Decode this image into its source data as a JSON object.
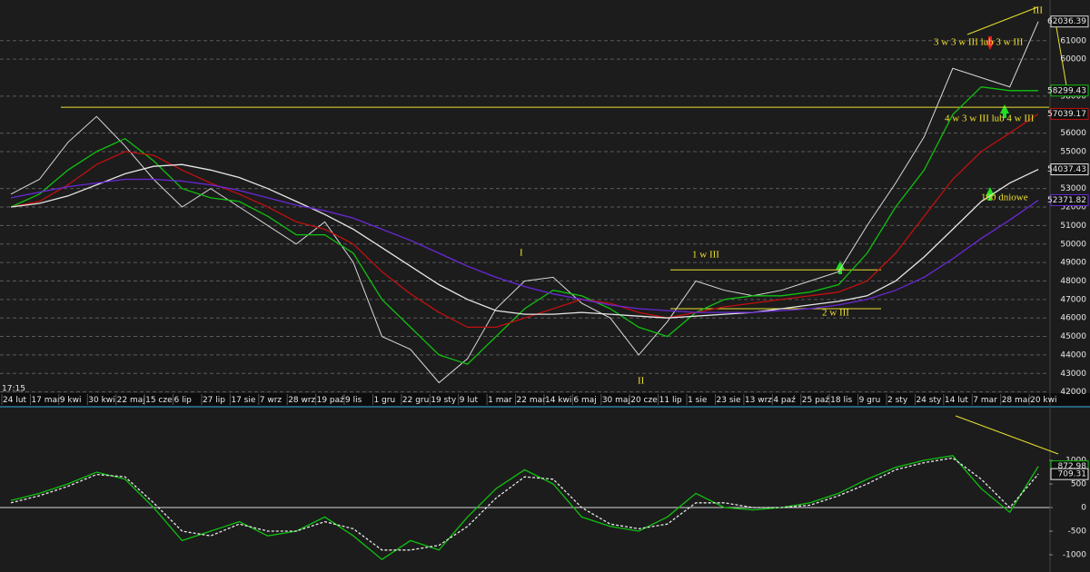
{
  "chart_data": [
    {
      "type": "line",
      "time": "17:15",
      "categories": [
        "24 lut",
        "17 mar",
        "9 kwi",
        "30 kwi",
        "22 maj",
        "15 cze",
        "6 lip",
        "27 lip",
        "17 sie",
        "7 wrz",
        "28 wrz",
        "19 paź",
        "9 lis",
        "1 gru",
        "22 gru",
        "19 sty",
        "9 lut",
        "1 mar",
        "22 mar",
        "14 kwi",
        "6 maj",
        "30 maj",
        "20 cze",
        "11 lip",
        "1 sie",
        "23 sie",
        "13 wrz",
        "4 paź",
        "25 paź",
        "18 lis",
        "9 gru",
        "2 sty",
        "24 sty",
        "14 lut",
        "7 mar",
        "28 mar",
        "20 kwi"
      ],
      "series": [
        {
          "color": "#d8d8d8",
          "values": [
            52700,
            53500,
            55500,
            56900,
            55300,
            53500,
            52000,
            53000,
            52000,
            51000,
            50000,
            51200,
            49000,
            45000,
            44300,
            42500,
            43800,
            46500,
            48000,
            48200,
            46800,
            46000,
            44000,
            45800,
            48000,
            47500,
            47200,
            47500,
            48000,
            48500,
            51000,
            53300,
            55800,
            59500,
            59000,
            58500,
            62036.39
          ]
        },
        {
          "color": "#10c010",
          "values": [
            52000,
            52700,
            54000,
            55000,
            55700,
            54500,
            53000,
            52500,
            52300,
            51500,
            50500,
            50500,
            49500,
            47000,
            45500,
            44000,
            43500,
            45000,
            46500,
            47500,
            47200,
            46500,
            45500,
            45000,
            46300,
            47000,
            47200,
            47200,
            47400,
            47800,
            49500,
            52000,
            54000,
            57000,
            58500,
            58300,
            58299.43
          ]
        },
        {
          "color": "#c01010",
          "values": [
            52000,
            52300,
            53200,
            54300,
            55000,
            54800,
            54000,
            53300,
            52700,
            52000,
            51200,
            50800,
            50000,
            48500,
            47300,
            46300,
            45500,
            45500,
            46000,
            46500,
            47000,
            46800,
            46300,
            46000,
            46300,
            46600,
            46800,
            47000,
            47200,
            47400,
            48000,
            49500,
            51500,
            53500,
            55000,
            56000,
            57039.17
          ]
        },
        {
          "color": "#e6e6e6",
          "values": [
            52000,
            52200,
            52600,
            53200,
            53800,
            54200,
            54300,
            54000,
            53600,
            53000,
            52300,
            51600,
            50800,
            49800,
            48800,
            47800,
            47000,
            46400,
            46200,
            46200,
            46300,
            46200,
            46100,
            46000,
            46100,
            46200,
            46300,
            46500,
            46700,
            46900,
            47200,
            48000,
            49300,
            50800,
            52300,
            53300,
            54037.43
          ]
        },
        {
          "color": "#6a28d8",
          "values": [
            52500,
            52800,
            53100,
            53300,
            53500,
            53500,
            53400,
            53200,
            52900,
            52500,
            52100,
            51800,
            51400,
            50800,
            50200,
            49500,
            48800,
            48200,
            47700,
            47300,
            47000,
            46700,
            46500,
            46400,
            46300,
            46300,
            46300,
            46400,
            46500,
            46700,
            47000,
            47500,
            48200,
            49200,
            50300,
            51300,
            52371.82
          ]
        }
      ],
      "levels": [
        57400,
        48600,
        46500
      ],
      "annotations": [
        "III",
        "3 w 3 w III lub 3 w III",
        "4 w 3 w III lub 4 w III",
        "100 dniowe",
        "I",
        "1 w III",
        "2 w III",
        "II"
      ],
      "ylim": [
        41000,
        63200
      ],
      "yticks": [
        42000,
        43000,
        44000,
        45000,
        46000,
        47000,
        48000,
        49000,
        50000,
        51000,
        52000,
        53000,
        55000,
        56000,
        58000,
        60000,
        61000
      ],
      "grid": true
    },
    {
      "type": "line",
      "series": [
        {
          "color": "#10c010",
          "dashed": false,
          "values": [
            150,
            300,
            500,
            750,
            600,
            0,
            -700,
            -500,
            -300,
            -600,
            -500,
            -200,
            -600,
            -1100,
            -700,
            -900,
            -200,
            400,
            800,
            500,
            -200,
            -400,
            -500,
            -200,
            300,
            0,
            -50,
            0,
            100,
            300,
            600,
            850,
            1000,
            1100,
            400,
            -100,
            872.98
          ]
        },
        {
          "color": "#e6e6e6",
          "dashed": true,
          "values": [
            100,
            250,
            450,
            700,
            650,
            100,
            -500,
            -600,
            -350,
            -500,
            -500,
            -300,
            -450,
            -900,
            -900,
            -800,
            -400,
            200,
            650,
            600,
            0,
            -350,
            -450,
            -350,
            100,
            100,
            0,
            0,
            50,
            250,
            500,
            800,
            950,
            1050,
            600,
            0,
            709.31
          ]
        }
      ],
      "ylim": [
        -1365,
        2135
      ],
      "yticks": [
        -1000,
        -500,
        0,
        500,
        1000
      ],
      "grid": false
    }
  ]
}
